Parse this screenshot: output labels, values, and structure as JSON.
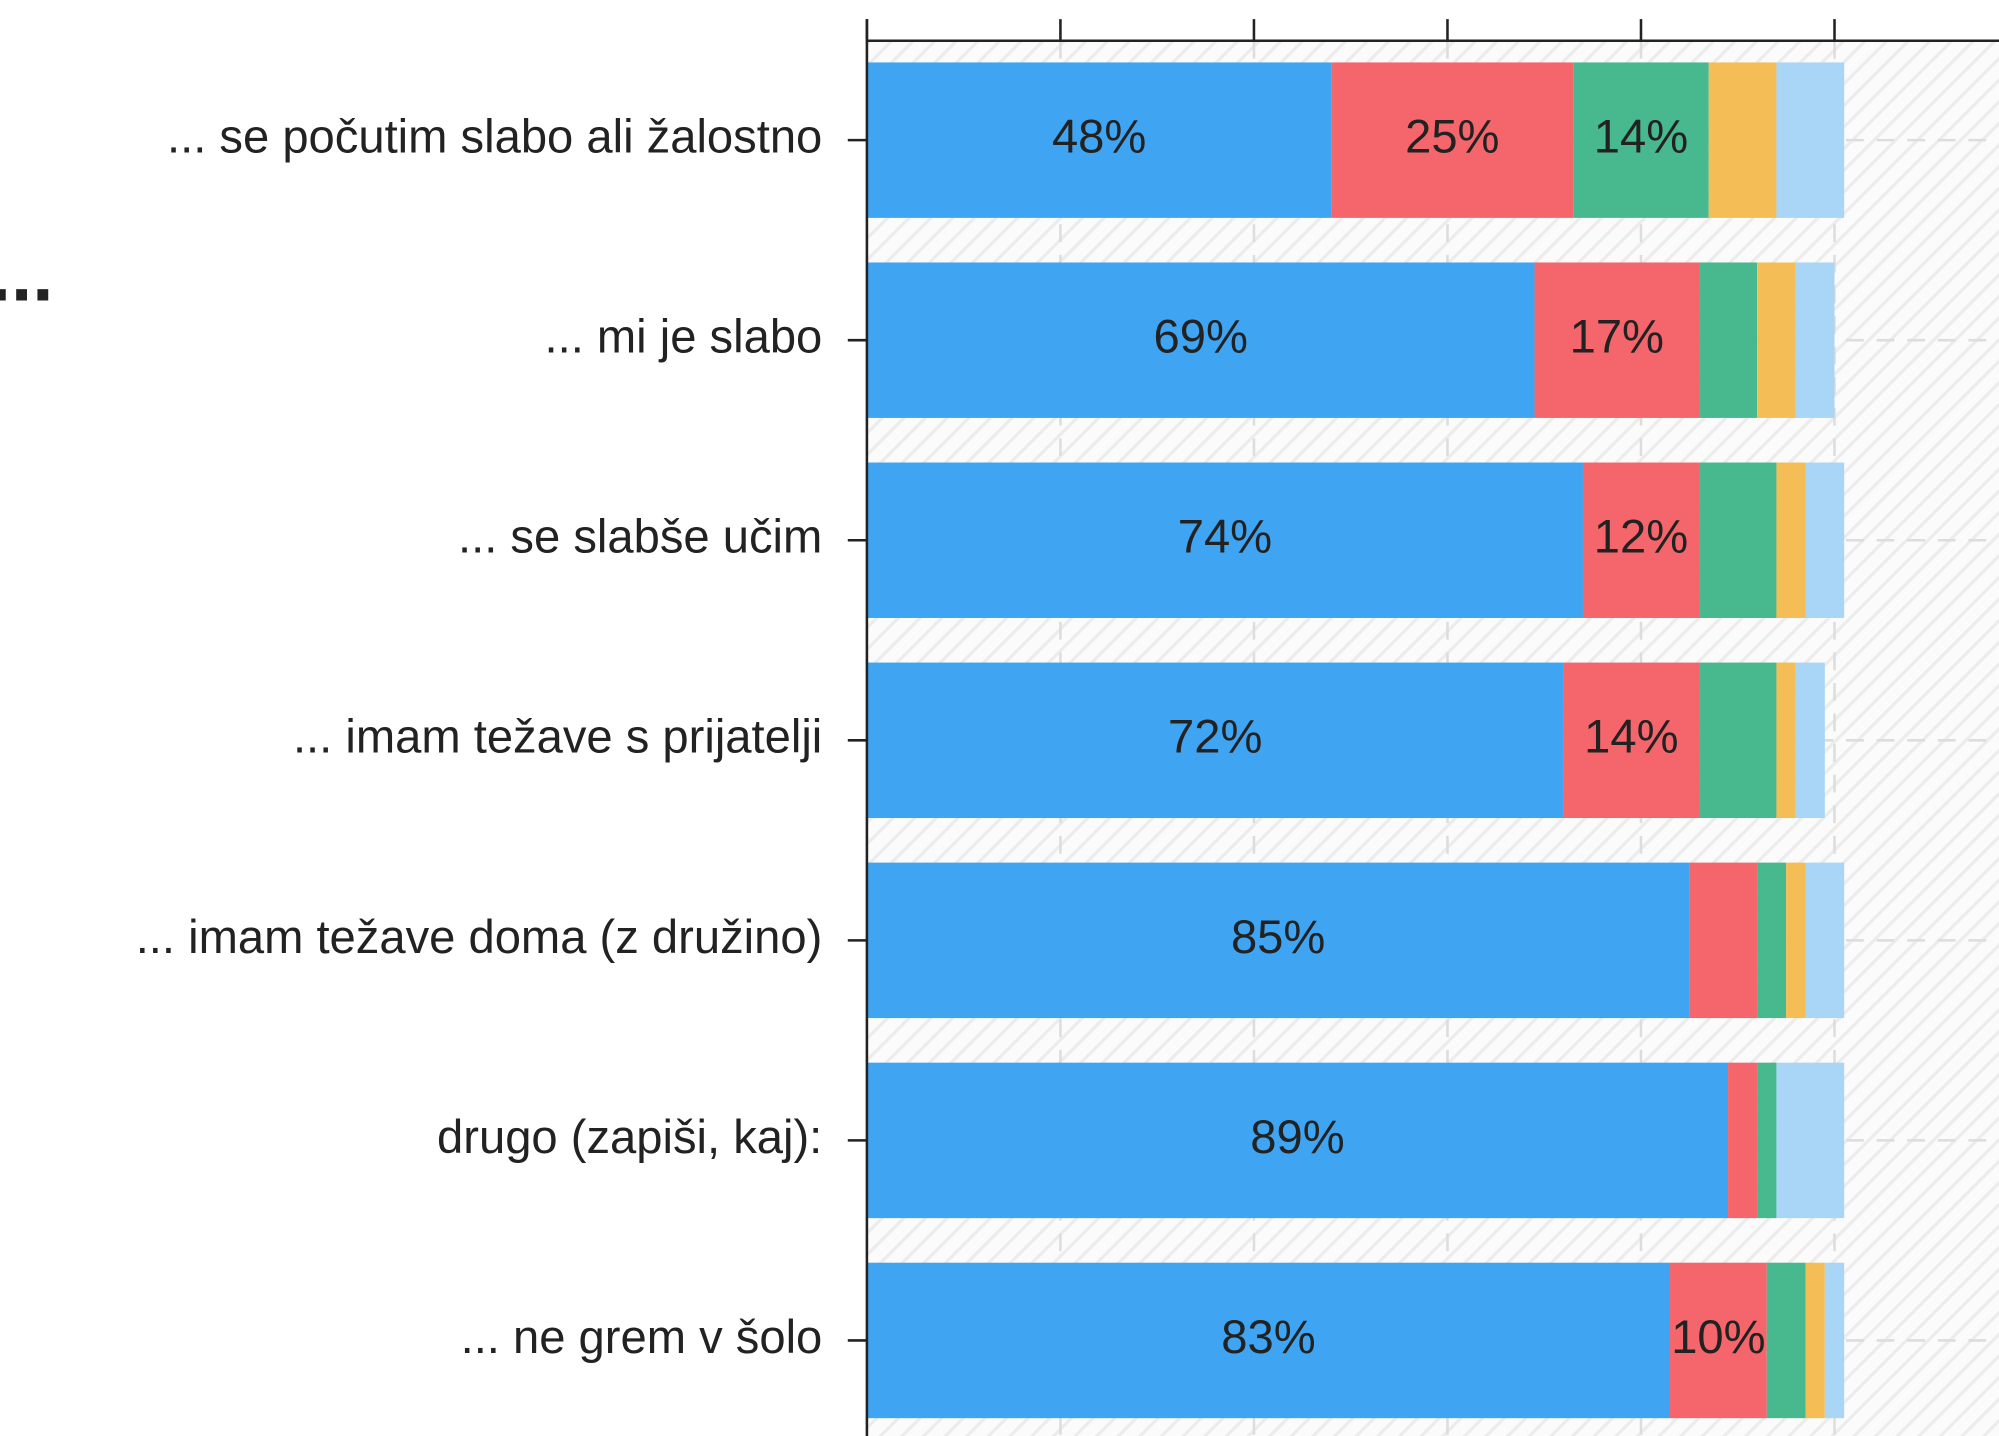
{
  "chart_data": {
    "type": "stacked-barh",
    "title": "...",
    "categories": [
      "... se počutim slabo ali žalostno",
      "... mi je slabo",
      "... se slabše učim",
      "... imam težave s prijatelji",
      "... imam težave doma (z družino)",
      "drugo (zapiši, kaj):",
      "... ne grem v šolo"
    ],
    "series": [
      {
        "color": "#3fa5f2",
        "values": [
          48,
          69,
          74,
          72,
          85,
          89,
          83
        ],
        "value_labels": [
          "48%",
          "69%",
          "74%",
          "72%",
          "85%",
          "89%",
          "83%"
        ]
      },
      {
        "color": "#f4666b",
        "values": [
          25,
          17,
          12,
          14,
          7,
          3,
          10
        ],
        "value_labels": [
          "25%",
          "17%",
          "12%",
          "14%",
          null,
          null,
          "10%"
        ]
      },
      {
        "color": "#48b88e",
        "values": [
          14,
          6,
          8,
          8,
          3,
          2,
          4
        ],
        "value_labels": [
          "14%",
          null,
          null,
          null,
          null,
          null,
          null
        ]
      },
      {
        "color": "#f5bd56",
        "values": [
          7,
          4,
          3,
          2,
          2,
          0,
          2
        ]
      },
      {
        "color": "#a9d6f7",
        "values": [
          7,
          4,
          4,
          3,
          4,
          7,
          2
        ]
      }
    ],
    "xlim": [
      0,
      117
    ],
    "xticks": [
      0,
      20,
      40,
      60,
      80,
      100
    ],
    "grid": true
  }
}
